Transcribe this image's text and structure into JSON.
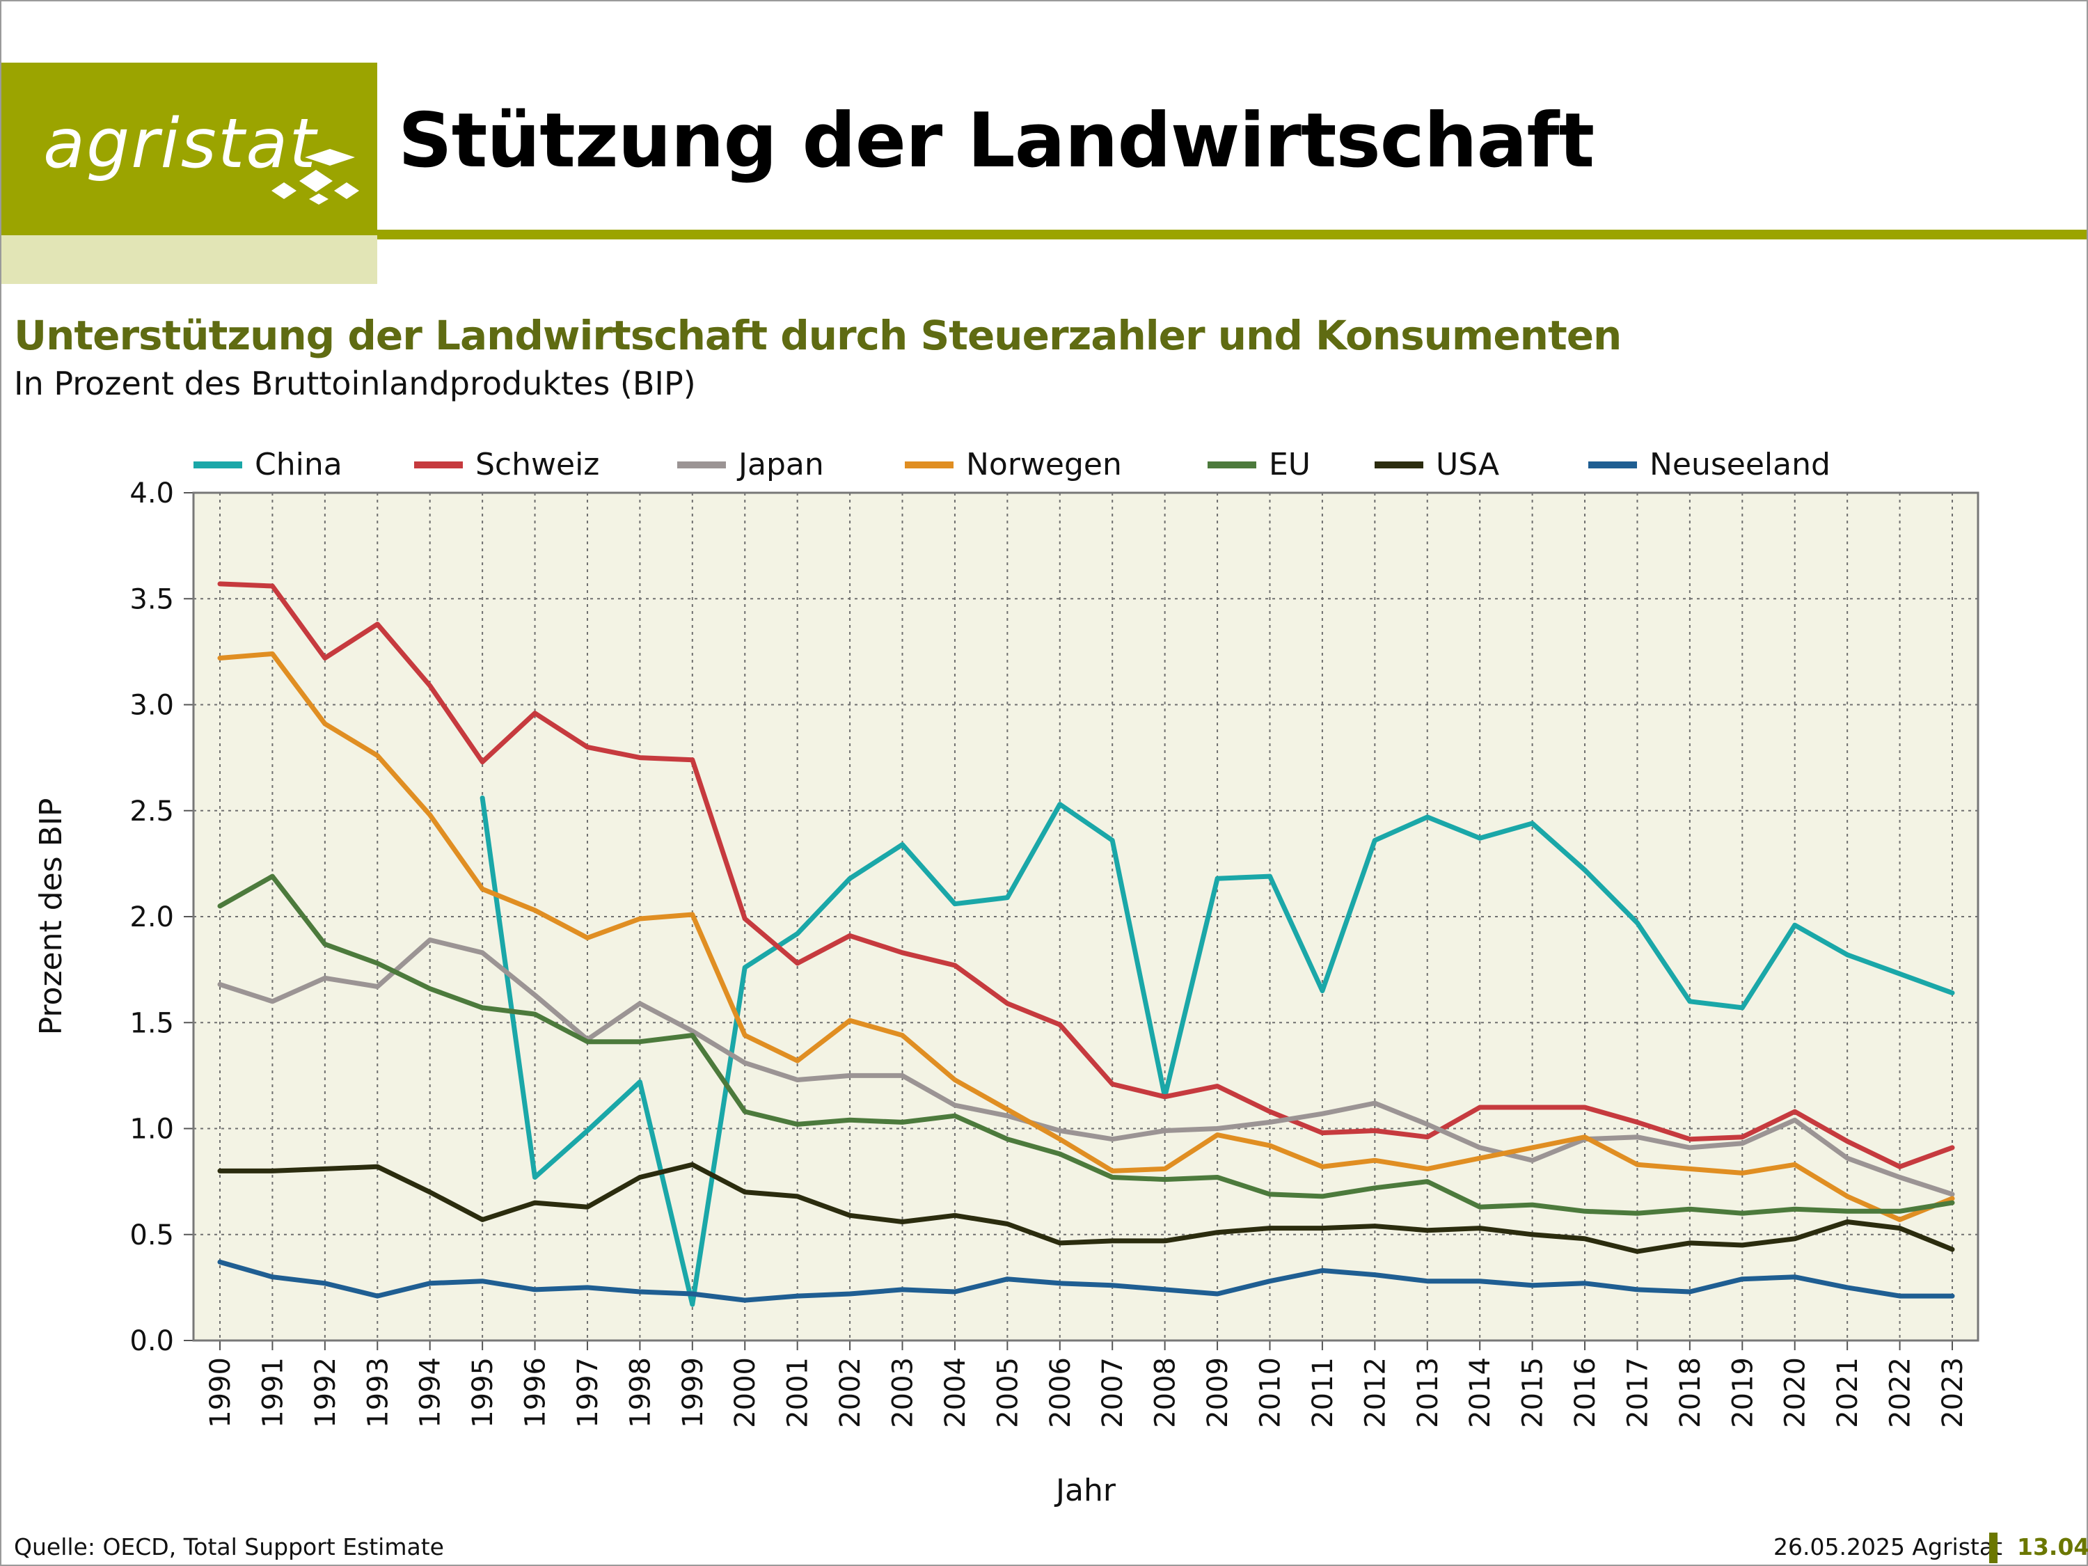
{
  "header": {
    "logo_text": "agristat",
    "page_title": "Stützung der Landwirtschaft"
  },
  "chart_title": "Unterstützung der Landwirtschaft durch Steuerzahler und Konsumenten",
  "chart_subtitle": "In Prozent des Bruttoinlandproduktes (BIP)",
  "footer": {
    "source": "Quelle: OECD, Total Support Estimate",
    "date_org": "26.05.2025 Agristat",
    "page_number": "13.04"
  },
  "chart_data": {
    "type": "line",
    "xlabel": "Jahr",
    "ylabel": "Prozent des BIP",
    "ylim": [
      0,
      4
    ],
    "yticks": [
      "0.0",
      "0.5",
      "1.0",
      "1.5",
      "2.0",
      "2.5",
      "3.0",
      "3.5",
      "4.0"
    ],
    "grid": true,
    "legend_position": "top",
    "plot_background": "#f3f3e4",
    "x": [
      1990,
      1991,
      1992,
      1993,
      1994,
      1995,
      1996,
      1997,
      1998,
      1999,
      2000,
      2001,
      2002,
      2003,
      2004,
      2005,
      2006,
      2007,
      2008,
      2009,
      2010,
      2011,
      2012,
      2013,
      2014,
      2015,
      2016,
      2017,
      2018,
      2019,
      2020,
      2021,
      2022,
      2023
    ],
    "series": [
      {
        "name": "China",
        "color": "#1aa7a8",
        "values": [
          null,
          null,
          null,
          null,
          null,
          2.56,
          0.77,
          0.99,
          1.22,
          0.17,
          1.76,
          1.92,
          2.18,
          2.34,
          2.06,
          2.09,
          2.53,
          2.36,
          1.15,
          2.18,
          2.19,
          1.65,
          2.36,
          2.47,
          2.37,
          2.44,
          2.22,
          1.97,
          1.6,
          1.57,
          1.96,
          1.82,
          1.73,
          1.64
        ]
      },
      {
        "name": "Schweiz",
        "color": "#c63a3e",
        "values": [
          3.57,
          3.56,
          3.22,
          3.38,
          3.09,
          2.73,
          2.96,
          2.8,
          2.75,
          2.74,
          1.99,
          1.78,
          1.91,
          1.83,
          1.77,
          1.59,
          1.49,
          1.21,
          1.15,
          1.2,
          1.08,
          0.98,
          0.99,
          0.96,
          1.1,
          1.1,
          1.1,
          1.03,
          0.95,
          0.96,
          1.08,
          0.94,
          0.82,
          0.91
        ]
      },
      {
        "name": "Japan",
        "color": "#9b9494",
        "values": [
          1.68,
          1.6,
          1.71,
          1.67,
          1.89,
          1.83,
          1.63,
          1.42,
          1.59,
          1.46,
          1.31,
          1.23,
          1.25,
          1.25,
          1.11,
          1.06,
          0.99,
          0.95,
          0.99,
          1.0,
          1.03,
          1.07,
          1.12,
          1.02,
          0.91,
          0.85,
          0.95,
          0.96,
          0.91,
          0.93,
          1.04,
          0.86,
          0.77,
          0.69
        ]
      },
      {
        "name": "Norwegen",
        "color": "#e08e22",
        "values": [
          3.22,
          3.24,
          2.91,
          2.76,
          2.48,
          2.13,
          2.03,
          1.9,
          1.99,
          2.01,
          1.44,
          1.32,
          1.51,
          1.44,
          1.23,
          1.09,
          0.95,
          0.8,
          0.81,
          0.97,
          0.92,
          0.82,
          0.85,
          0.81,
          0.86,
          0.91,
          0.96,
          0.83,
          0.81,
          0.79,
          0.83,
          0.68,
          0.57,
          0.67
        ]
      },
      {
        "name": "EU",
        "color": "#4c7a3c",
        "values": [
          2.05,
          2.19,
          1.87,
          1.78,
          1.66,
          1.57,
          1.54,
          1.41,
          1.41,
          1.44,
          1.08,
          1.02,
          1.04,
          1.03,
          1.06,
          0.95,
          0.88,
          0.77,
          0.76,
          0.77,
          0.69,
          0.68,
          0.72,
          0.75,
          0.63,
          0.64,
          0.61,
          0.6,
          0.62,
          0.6,
          0.62,
          0.61,
          0.61,
          0.65
        ]
      },
      {
        "name": "USA",
        "color": "#2b2c0e",
        "values": [
          0.8,
          0.8,
          0.81,
          0.82,
          0.7,
          0.57,
          0.65,
          0.63,
          0.77,
          0.83,
          0.7,
          0.68,
          0.59,
          0.56,
          0.59,
          0.55,
          0.46,
          0.47,
          0.47,
          0.51,
          0.53,
          0.53,
          0.54,
          0.52,
          0.53,
          0.5,
          0.48,
          0.42,
          0.46,
          0.45,
          0.48,
          0.56,
          0.53,
          0.43
        ]
      },
      {
        "name": "Neuseeland",
        "color": "#1f5e92",
        "values": [
          0.37,
          0.3,
          0.27,
          0.21,
          0.27,
          0.28,
          0.24,
          0.25,
          0.23,
          0.22,
          0.19,
          0.21,
          0.22,
          0.24,
          0.23,
          0.29,
          0.27,
          0.26,
          0.24,
          0.22,
          0.28,
          0.33,
          0.31,
          0.28,
          0.28,
          0.26,
          0.27,
          0.24,
          0.23,
          0.29,
          0.3,
          0.25,
          0.21,
          0.21
        ]
      }
    ]
  }
}
